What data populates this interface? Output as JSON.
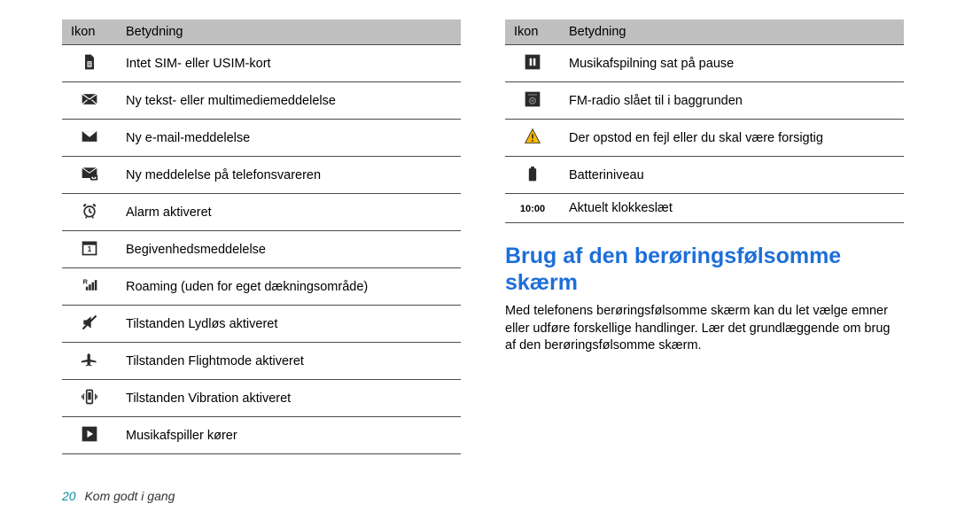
{
  "colors": {
    "heading": "#1d6fd8",
    "header_bg": "#bfbfbf",
    "rule": "#4a4a4a",
    "page_num": "#0d8a9a",
    "icon_dark": "#2a2a2a",
    "warn_fill": "#f7b500"
  },
  "table_headers": {
    "icon": "Ikon",
    "meaning": "Betydning"
  },
  "left_rows": [
    {
      "icon": "sim",
      "meaning": "Intet SIM- eller USIM-kort"
    },
    {
      "icon": "envelope-x",
      "meaning": "Ny tekst- eller multimediemeddelelse"
    },
    {
      "icon": "mail",
      "meaning": "Ny e-mail-meddelelse"
    },
    {
      "icon": "voicemail",
      "meaning": "Ny meddelelse på telefonsvareren"
    },
    {
      "icon": "alarm",
      "meaning": "Alarm aktiveret"
    },
    {
      "icon": "calendar",
      "meaning": "Begivenhedsmeddelelse"
    },
    {
      "icon": "roaming",
      "meaning": "Roaming (uden for eget dækningsområde)"
    },
    {
      "icon": "mute",
      "meaning": "Tilstanden Lydløs aktiveret"
    },
    {
      "icon": "plane",
      "meaning": "Tilstanden Flightmode aktiveret"
    },
    {
      "icon": "vibration",
      "meaning": "Tilstanden Vibration aktiveret"
    },
    {
      "icon": "play",
      "meaning": "Musikafspiller kører"
    }
  ],
  "right_rows": [
    {
      "icon": "pause",
      "meaning": "Musikafspilning sat på pause"
    },
    {
      "icon": "radio",
      "meaning": "FM-radio slået til i baggrunden"
    },
    {
      "icon": "warning",
      "meaning": "Der opstod en fejl eller du skal være forsigtig"
    },
    {
      "icon": "battery",
      "meaning": "Batteriniveau"
    },
    {
      "icon": "clock",
      "meaning": "Aktuelt klokkeslæt",
      "icon_text": "10:00"
    }
  ],
  "heading": "Brug af den berøringsfølsomme skærm",
  "paragraph": "Med telefonens berøringsfølsomme skærm kan du let vælge emner eller udføre forskellige handlinger. Lær det grundlæggende om brug af den berøringsfølsomme skærm.",
  "footer": {
    "page_number": "20",
    "section": "Kom godt i gang"
  }
}
